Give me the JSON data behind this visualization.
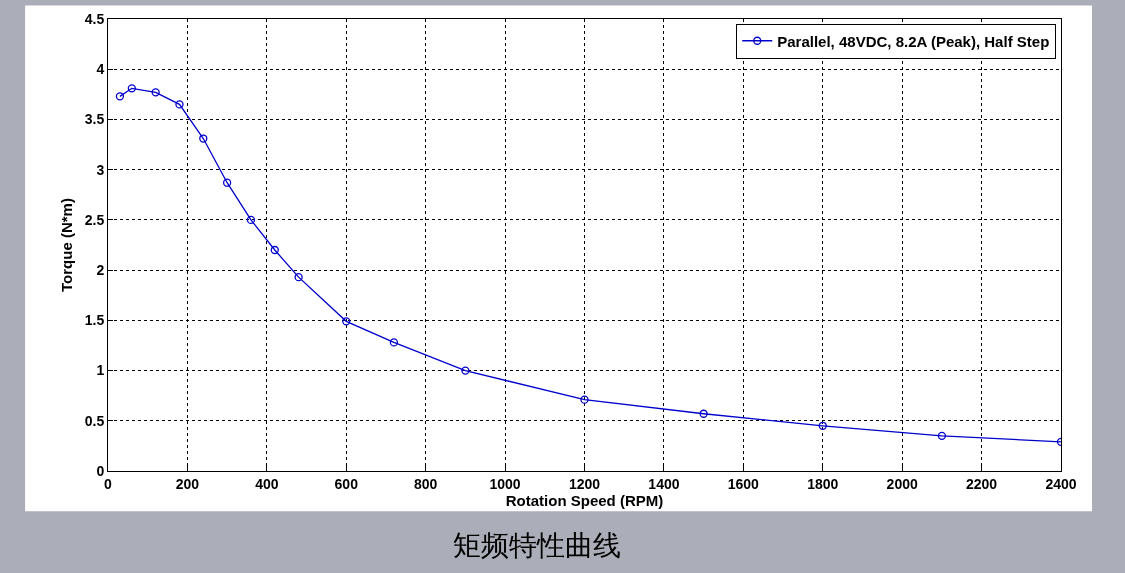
{
  "chart_data": {
    "type": "line",
    "xlabel": "Rotation Speed (RPM)",
    "ylabel": "Torque (N*m)",
    "x": [
      30,
      60,
      120,
      180,
      240,
      300,
      360,
      420,
      480,
      600,
      720,
      900,
      1200,
      1500,
      1800,
      2100,
      2400
    ],
    "series": [
      {
        "name": "Parallel, 48VDC, 8.2A (Peak), Half Step",
        "color": "#0000cc",
        "values": [
          3.73,
          3.81,
          3.77,
          3.65,
          3.31,
          2.87,
          2.5,
          2.2,
          1.93,
          1.49,
          1.28,
          1.0,
          0.71,
          0.57,
          0.45,
          0.35,
          0.29
        ]
      }
    ],
    "xlim": [
      0,
      2400
    ],
    "xticks": [
      0,
      200,
      400,
      600,
      800,
      1000,
      1200,
      1400,
      1600,
      1800,
      2000,
      2200,
      2400
    ],
    "ylim": [
      0,
      4.5
    ],
    "yticks": [
      0,
      0.5,
      1,
      1.5,
      2,
      2.5,
      3,
      3.5,
      4,
      4.5
    ],
    "grid": true,
    "legend": "top right",
    "marker": "circle",
    "line_style": "solid",
    "annotations": [
      "矩频特性曲线"
    ]
  }
}
